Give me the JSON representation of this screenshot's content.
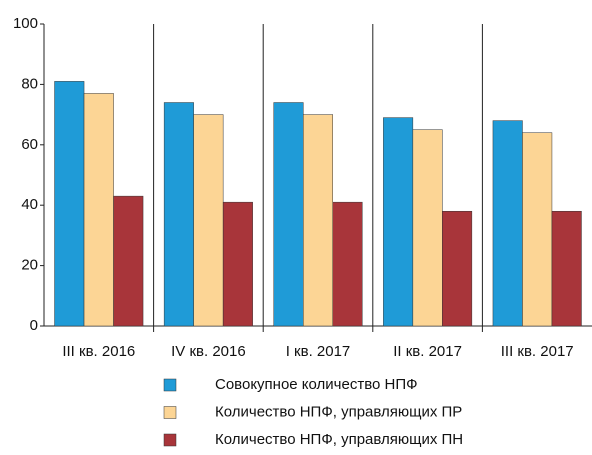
{
  "chart_data": {
    "type": "bar",
    "categories": [
      "III кв. 2016",
      "IV кв. 2016",
      "I кв. 2017",
      "II кв. 2017",
      "III кв. 2017"
    ],
    "series": [
      {
        "name": "Совокупное количество НПФ",
        "color": "#1f9bd7",
        "values": [
          81,
          74,
          74,
          69,
          68
        ]
      },
      {
        "name": "Количество НПФ, управляющих ПР",
        "color": "#fcd595",
        "values": [
          77,
          70,
          70,
          65,
          64
        ]
      },
      {
        "name": "Количество НПФ, управляющих ПН",
        "color": "#a8353a",
        "values": [
          43,
          41,
          41,
          38,
          38
        ]
      }
    ],
    "ylim": [
      0,
      100
    ],
    "yticks": [
      0,
      20,
      40,
      60,
      80,
      100
    ],
    "grid": false
  }
}
